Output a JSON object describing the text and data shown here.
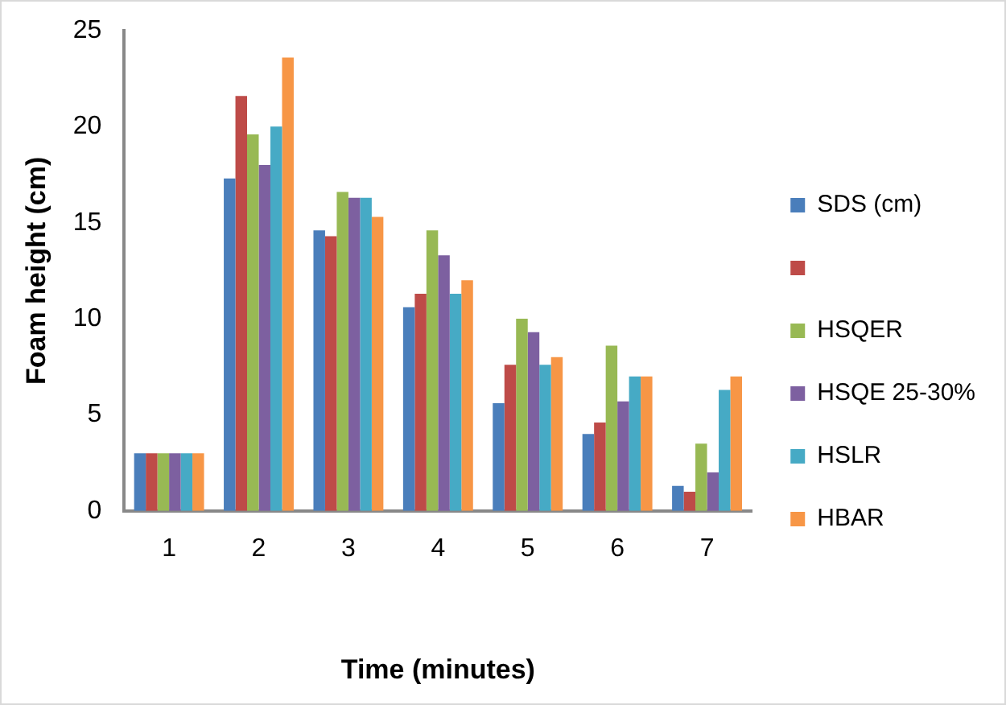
{
  "chart_data": {
    "type": "bar",
    "xlabel": "Time (minutes)",
    "ylabel": "Foam height (cm)",
    "categories": [
      "1",
      "2",
      "3",
      "4",
      "5",
      "6",
      "7"
    ],
    "series": [
      {
        "name": "SDS (cm)",
        "color": "#4a7ebb",
        "values": [
          3,
          17.3,
          14.6,
          10.6,
          5.6,
          4,
          1.3
        ]
      },
      {
        "color": "#be4b48",
        "values": [
          3,
          21.6,
          14.3,
          11.3,
          7.6,
          4.6,
          1.0
        ]
      },
      {
        "name": "HSQER",
        "color": "#98b954",
        "values": [
          3,
          19.6,
          16.6,
          14.6,
          10,
          8.6,
          3.5
        ]
      },
      {
        "name": "HSQE 25-30%",
        "color": "#7d60a0",
        "values": [
          3,
          18,
          16.3,
          13.3,
          9.3,
          5.7,
          2
        ]
      },
      {
        "name": "HSLR",
        "color": "#46aac5",
        "values": [
          3,
          20,
          16.3,
          11.3,
          7.6,
          7,
          6.3
        ]
      },
      {
        "name": "HBAR",
        "color": "#f79646",
        "values": [
          3,
          23.6,
          15.3,
          12,
          8,
          7,
          7
        ]
      }
    ],
    "ylim": [
      0,
      25
    ],
    "yticks": [
      0,
      5,
      10,
      15,
      20,
      25
    ],
    "grid": false,
    "legend": "right"
  }
}
